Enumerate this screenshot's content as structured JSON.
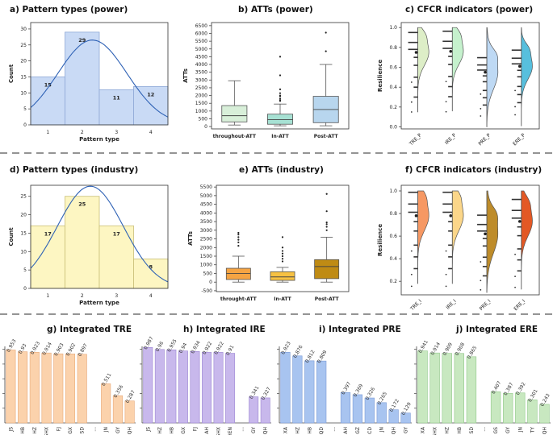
{
  "chart_data": [
    {
      "id": "a",
      "type": "bar",
      "title": "a) Pattern types (power)",
      "xlabel": "Pattern type",
      "ylabel": "Count",
      "categories": [
        "1",
        "2",
        "3",
        "4"
      ],
      "values": [
        15,
        29,
        11,
        12
      ],
      "yticks": [
        0,
        5,
        10,
        15,
        20,
        25,
        30
      ],
      "ylim": [
        0,
        32
      ],
      "curve": "normal fit",
      "colors": {
        "fill": "#c9daf5",
        "edge": "#8fa9d6",
        "curve": "#2f62b5"
      }
    },
    {
      "id": "b",
      "type": "box",
      "title": "b) ATTs (power)",
      "ylabel": "ATTs",
      "categories": [
        "throughout-ATT",
        "In-ATT",
        "Post-ATT"
      ],
      "yticks": [
        0,
        500,
        1000,
        1500,
        2000,
        2500,
        3000,
        3500,
        4000,
        4500,
        5000,
        5500,
        6000,
        6500
      ],
      "ylim": [
        -150,
        6700
      ],
      "boxes": [
        {
          "min": 100,
          "q1": 300,
          "median": 700,
          "q3": 1350,
          "max": 2950,
          "outliers": []
        },
        {
          "min": 50,
          "q1": 150,
          "median": 450,
          "q3": 800,
          "max": 1450,
          "outliers": [
            1650,
            1700,
            1800,
            1950,
            2000,
            2150,
            2400,
            3300,
            4500
          ]
        },
        {
          "min": 50,
          "q1": 250,
          "median": 1100,
          "q3": 1950,
          "max": 4000,
          "outliers": [
            4850,
            6050
          ]
        }
      ],
      "colors": [
        "#d8efd9",
        "#a7e1d3",
        "#b8d6ee"
      ]
    },
    {
      "id": "c",
      "type": "raincloud",
      "title": "c) CFCR indicators (power)",
      "ylabel": "Resilience",
      "categories": [
        "TRE_P",
        "IRE_P",
        "PRE_P",
        "ERE_P"
      ],
      "yticks": [
        0.0,
        0.2,
        0.4,
        0.6,
        0.8,
        1.0
      ],
      "ylim": [
        -0.02,
        1.05
      ],
      "means": [
        0.75,
        0.76,
        0.55,
        0.61
      ],
      "colors": [
        "#d9ecc1",
        "#bff0c8",
        "#b7d5f3",
        "#45b8d9"
      ]
    },
    {
      "id": "d",
      "type": "bar",
      "title": "d) Pattern types (industry)",
      "xlabel": "Pattern type",
      "ylabel": "Count",
      "categories": [
        "1",
        "2",
        "3",
        "4"
      ],
      "values": [
        17,
        25,
        17,
        8
      ],
      "yticks": [
        0,
        5,
        10,
        15,
        20,
        25
      ],
      "ylim": [
        0,
        28
      ],
      "curve": "normal fit",
      "colors": {
        "fill": "#fdf6c2",
        "edge": "#c9bf78",
        "curve": "#2f62b5"
      }
    },
    {
      "id": "e",
      "type": "box",
      "title": "e) ATTs (industry)",
      "ylabel": "ATTs",
      "categories": [
        "throught-ATT",
        "In-ATT",
        "Post-ATT"
      ],
      "yticks": [
        -500,
        0,
        500,
        1000,
        1500,
        2000,
        2500,
        3000,
        3500,
        4000,
        4500,
        5000,
        5500
      ],
      "ylim": [
        -550,
        5600
      ],
      "boxes": [
        {
          "min": 0,
          "q1": 150,
          "median": 500,
          "q3": 800,
          "max": 1500,
          "outliers": [
            2100,
            2300,
            2450,
            2600,
            2750,
            2850
          ]
        },
        {
          "min": 0,
          "q1": 100,
          "median": 300,
          "q3": 600,
          "max": 850,
          "outliers": [
            1200,
            1350,
            1500,
            1650,
            1800,
            2000,
            2600
          ]
        },
        {
          "min": 0,
          "q1": 200,
          "median": 900,
          "q3": 1300,
          "max": 2600,
          "outliers": [
            3000,
            3200,
            3350,
            3450,
            4100,
            5100
          ]
        }
      ],
      "colors": [
        "#f5a443",
        "#f7c142",
        "#bf8b14"
      ]
    },
    {
      "id": "f",
      "type": "raincloud",
      "title": "f) CFCR indicators (industry)",
      "ylabel": "Resilience",
      "categories": [
        "TRE_I",
        "IRE_I",
        "PRE_I",
        "ERE_I"
      ],
      "yticks": [
        0.2,
        0.4,
        0.6,
        0.8,
        1.0
      ],
      "ylim": [
        0.08,
        1.05
      ],
      "means": [
        0.78,
        0.78,
        0.62,
        0.73
      ],
      "colors": [
        "#f58d52",
        "#fbd27c",
        "#b78013",
        "#e0460d"
      ]
    },
    {
      "id": "g",
      "type": "bar",
      "title": "g) Integrated TRE",
      "categories": [
        "JS",
        "HB",
        "HZ",
        "SHX",
        "FJ",
        "GX",
        "SD",
        "...",
        "JN",
        "GY",
        "QH"
      ],
      "values": [
        0.953,
        0.93,
        0.923,
        0.914,
        0.903,
        0.902,
        0.897,
        null,
        0.511,
        0.356,
        0.287
      ],
      "labels": [
        "0.953",
        "0.93",
        "0.923",
        "0.914",
        "0.903",
        "0.902",
        "0.897",
        "",
        "0.511",
        "0.356",
        "0.287"
      ],
      "color": "#fbd2ac",
      "edge": "#e7a877"
    },
    {
      "id": "h",
      "type": "bar",
      "title": "h) Integrated IRE",
      "categories": [
        "JS",
        "HZ",
        "HB",
        "GX",
        "FJ",
        "AH",
        "SHX",
        "HEN",
        "...",
        "GY",
        "QH"
      ],
      "values": [
        0.987,
        0.96,
        0.955,
        0.94,
        0.934,
        0.922,
        0.922,
        0.91,
        null,
        0.341,
        0.327
      ],
      "labels": [
        "0.987",
        "0.96",
        "0.955",
        "0.94",
        "0.934",
        "0.922",
        "0.922",
        "0.91",
        "",
        "0.341",
        "0.327"
      ],
      "color": "#c8b8ec",
      "edge": "#9b84d2"
    },
    {
      "id": "i",
      "type": "bar",
      "title": "i) Integrated PRE",
      "categories": [
        "XA",
        "HZ",
        "HB",
        "QD",
        "...",
        "AH",
        "GZ",
        "CD",
        "JN",
        "QH",
        "GY"
      ],
      "values": [
        0.923,
        0.876,
        0.812,
        0.809,
        null,
        0.397,
        0.369,
        0.326,
        0.265,
        0.172,
        0.129
      ],
      "labels": [
        "0.923",
        "0.876",
        "0.812",
        "0.809",
        "",
        "0.397",
        "0.369",
        "0.326",
        "0.265",
        "0.172",
        "0.129"
      ],
      "color": "#a8c4f0",
      "edge": "#7a9ad6"
    },
    {
      "id": "j",
      "type": "bar",
      "title": "j) Integrated ERE",
      "categories": [
        "XA",
        "SHX",
        "HZ",
        "HB",
        "SD",
        "...",
        "GS",
        "GY",
        "JN",
        "TY",
        "QH"
      ],
      "values": [
        0.941,
        0.914,
        0.909,
        0.908,
        0.865,
        null,
        0.407,
        0.387,
        0.392,
        0.301,
        0.243
      ],
      "labels": [
        "0.941",
        "0.914",
        "0.909",
        "0.908",
        "0.865",
        "",
        "0.407",
        "0.387",
        "0.392",
        "0.301",
        "0.243"
      ],
      "color": "#c8e8c0",
      "edge": "#92c88a"
    }
  ]
}
